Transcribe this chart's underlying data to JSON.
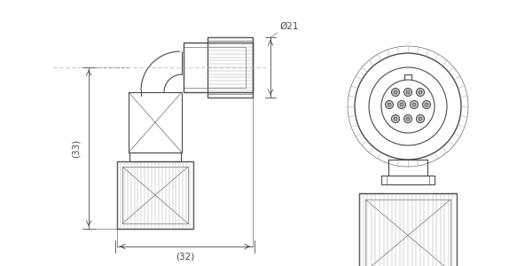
{
  "bg_color": "#ffffff",
  "line_color": "#4a4a4a",
  "dim_color": "#4a4a4a",
  "lw": 0.8,
  "lw_thick": 1.0,
  "lw_thin": 0.4,
  "lw_dim": 0.6,
  "fig_width": 5.83,
  "fig_height": 3.0,
  "dpi": 100,
  "dim_33_label": "(33)",
  "dim_32_label": "(32)",
  "dim_21_label": "Ø21"
}
